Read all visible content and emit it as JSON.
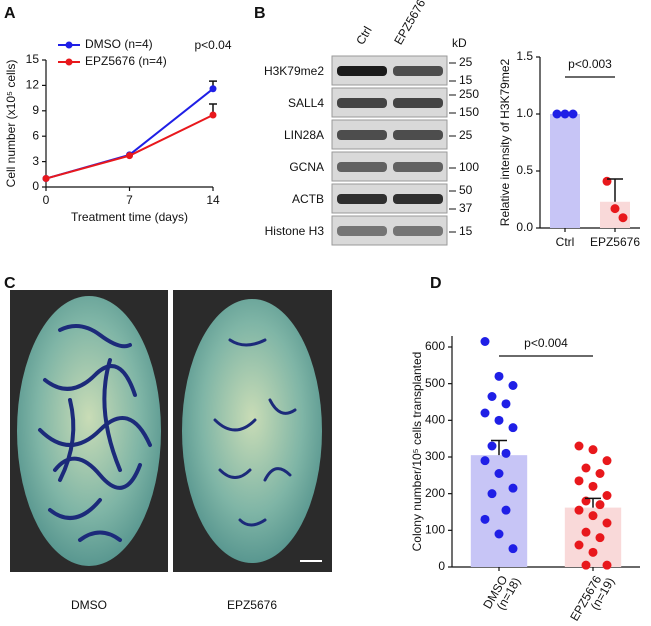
{
  "panel_labels": [
    "A",
    "B",
    "C",
    "D"
  ],
  "chart_data": [
    {
      "type": "line",
      "ylabel": "Cell number (x10⁵ cells)",
      "xlabel": "Treatment time (days)",
      "x": [
        0,
        7,
        14
      ],
      "xlim": [
        0,
        14
      ],
      "xticks": [
        0,
        7,
        14
      ],
      "ylim": [
        0,
        15
      ],
      "yticks": [
        0,
        3,
        6,
        9,
        12,
        15
      ],
      "legend": "upper left",
      "annotation": "p<0.04",
      "series": [
        {
          "name": "DMSO (n=4)",
          "color": "#1f1fe6",
          "values": [
            1,
            3.8,
            11.6
          ],
          "errors": [
            null,
            null,
            0.9
          ]
        },
        {
          "name": "EPZ5676 (n=4)",
          "color": "#e8181c",
          "values": [
            1,
            3.7,
            8.5
          ],
          "errors": [
            null,
            null,
            1.3
          ]
        }
      ]
    },
    {
      "type": "bar",
      "ylabel": "Relative intensity of H3K79me2",
      "categories": [
        "Ctrl",
        "EPZ5676"
      ],
      "values": [
        1.0,
        0.23
      ],
      "errors": [
        null,
        0.2
      ],
      "colors": [
        "#c7c5f6",
        "#f9d9d9"
      ],
      "point_colors": [
        "#1f1fe6",
        "#e8181c"
      ],
      "points": [
        [
          1.0,
          1.0,
          1.0
        ],
        [
          0.41,
          0.17,
          0.09
        ]
      ],
      "ylim": [
        0,
        1.5
      ],
      "yticks": [
        {
          "value": 0,
          "label": "0.0"
        },
        {
          "value": 0.5,
          "label": "0.5"
        },
        {
          "value": 1.0,
          "label": "1.0"
        },
        {
          "value": 1.5,
          "label": "1.5"
        }
      ],
      "annotation": "p<0.003"
    },
    {
      "type": "bar",
      "ylabel": "Colony number/10⁵ cells transplanted",
      "categories": [
        [
          "DMSO",
          "(n=18)"
        ],
        [
          "EPZ5676",
          "(n=19)"
        ]
      ],
      "values": [
        305,
        162
      ],
      "errors": [
        40,
        25
      ],
      "colors": [
        "#c7c5f6",
        "#f9d9d9"
      ],
      "point_colors": [
        "#1f1fe6",
        "#e8181c"
      ],
      "points": [
        [
          615,
          520,
          495,
          465,
          445,
          420,
          400,
          380,
          330,
          310,
          290,
          255,
          215,
          200,
          155,
          130,
          90,
          50
        ],
        [
          330,
          320,
          290,
          270,
          255,
          235,
          220,
          195,
          180,
          170,
          155,
          140,
          120,
          95,
          80,
          60,
          40,
          5,
          5
        ]
      ],
      "ylim": [
        0,
        630
      ],
      "yticks": [
        0,
        100,
        200,
        300,
        400,
        500,
        600
      ],
      "annotation": "p<0.004"
    }
  ],
  "blot": {
    "lanes": [
      "Ctrl",
      "EPZ5676"
    ],
    "unit": "kD",
    "rows": [
      {
        "label": "H3K79me2",
        "markers": [
          25,
          15
        ]
      },
      {
        "label": "SALL4",
        "markers": [
          250,
          150
        ]
      },
      {
        "label": "LIN28A",
        "markers": [
          25
        ]
      },
      {
        "label": "GCNA",
        "markers": [
          100
        ]
      },
      {
        "label": "ACTB",
        "markers": [
          50,
          37
        ]
      },
      {
        "label": "Histone H3",
        "markers": [
          15
        ]
      }
    ]
  },
  "images": {
    "labels": [
      "DMSO",
      "EPZ5676"
    ]
  }
}
